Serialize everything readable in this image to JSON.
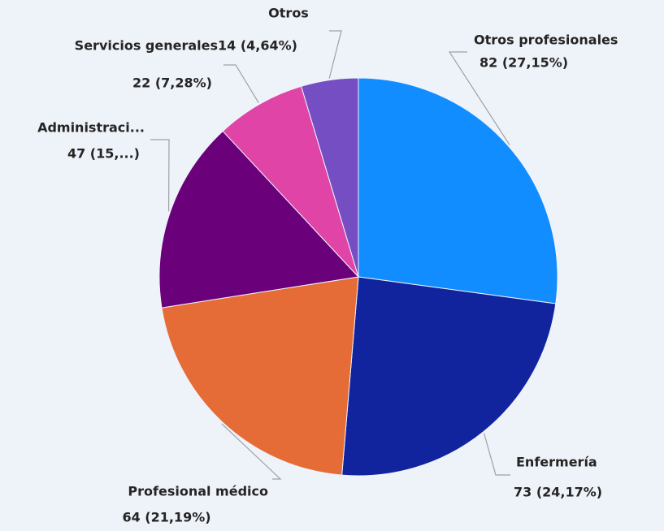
{
  "chart_data": {
    "type": "pie",
    "categories": [
      "Otros profesionales",
      "Enfermería",
      "Profesional médico",
      "Administraci...",
      "Servicios generales",
      "Otros"
    ],
    "values": [
      82,
      73,
      64,
      47,
      22,
      14
    ],
    "value_labels": [
      "82 (27,15%)",
      "73 (24,17%)",
      "64 (21,19%)",
      "47 (15,...)",
      "22 (7,28%)",
      "14 (4,64%)"
    ],
    "colors": [
      "#118dff",
      "#12239e",
      "#e66c37",
      "#6b007b",
      "#e044a7",
      "#744ec2"
    ]
  }
}
